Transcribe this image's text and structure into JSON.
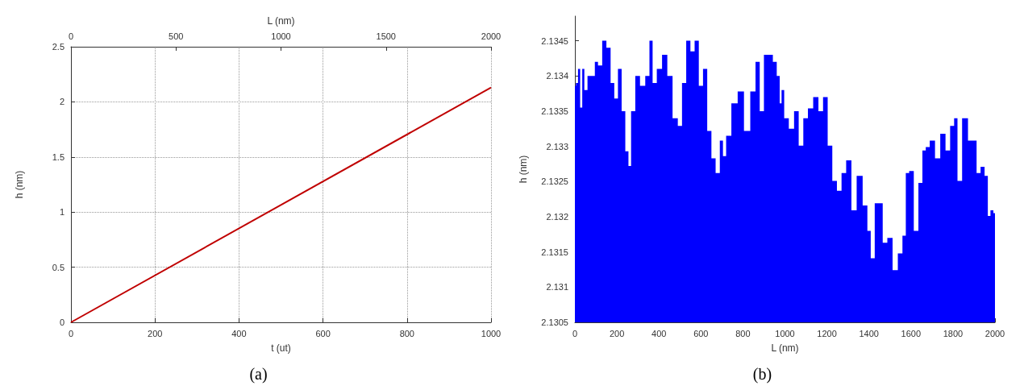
{
  "chart_data": [
    {
      "type": "line",
      "xlabel": "t (ut)",
      "ylabel": "h (nm)",
      "x2label": "L (nm)",
      "annotations": [
        "(a)"
      ],
      "x": [
        0,
        1000
      ],
      "values": [
        0,
        2.13
      ],
      "color": "#c00000",
      "xlim": [
        0,
        1000
      ],
      "xticks": [
        0,
        200,
        400,
        600,
        800,
        1000
      ],
      "ylim": [
        0,
        2.5
      ],
      "yticks": [
        0,
        0.5,
        1,
        1.5,
        2,
        2.5
      ],
      "x2lim": [
        0,
        2000
      ],
      "x2ticks": [
        0,
        500,
        1000,
        1500,
        2000
      ],
      "grid": true,
      "marker": "none"
    },
    {
      "type": "area",
      "xlabel": "L (nm)",
      "ylabel": "h (nm)",
      "annotations": [
        "(b)"
      ],
      "color": "#0000ff",
      "xlim": [
        0,
        2000
      ],
      "xticks": [
        0,
        200,
        400,
        600,
        800,
        1000,
        1200,
        1400,
        1600,
        1800,
        2000
      ],
      "ylim": [
        2.1305,
        2.13485
      ],
      "yticks": [
        2.1305,
        2.131,
        2.1315,
        2.132,
        2.1325,
        2.133,
        2.1335,
        2.134,
        2.1345
      ],
      "marker": "none",
      "x": [
        0,
        10,
        20,
        30,
        40,
        50,
        70,
        90,
        100,
        120,
        140,
        160,
        180,
        195,
        215,
        230,
        250,
        260,
        275,
        300,
        320,
        350,
        360,
        380,
        400,
        430,
        450,
        480,
        500,
        520,
        540,
        560,
        580,
        600,
        620,
        640,
        660,
        680,
        700,
        710,
        730,
        760,
        790,
        820,
        850,
        870,
        890,
        910,
        935,
        950,
        972,
        978,
        990,
        1003,
        1034,
        1053,
        1078,
        1097,
        1122,
        1147,
        1172,
        1191,
        1216,
        1235,
        1260,
        1279,
        1304,
        1329,
        1354,
        1386,
        1399,
        1418,
        1437,
        1456,
        1475,
        1500,
        1525,
        1550,
        1569,
        1582,
        1601,
        1626,
        1645,
        1664,
        1677,
        1702,
        1727,
        1752,
        1777,
        1796,
        1815,
        1828,
        1859,
        1884,
        1903,
        1922,
        1941,
        1960,
        1972,
        1985,
        2000
      ],
      "values": [
        2.13386,
        2.1339,
        2.1341,
        2.13355,
        2.1341,
        2.1338,
        2.134,
        2.134,
        2.1342,
        2.13415,
        2.1345,
        2.1344,
        2.1339,
        2.13368,
        2.1341,
        2.1335,
        2.13293,
        2.13272,
        2.1335,
        2.134,
        2.13386,
        2.134,
        2.1345,
        2.1339,
        2.1341,
        2.1343,
        2.134,
        2.1334,
        2.13329,
        2.1339,
        2.1345,
        2.13435,
        2.1345,
        2.13386,
        2.1341,
        2.13322,
        2.13283,
        2.13262,
        2.13308,
        2.13286,
        2.13315,
        2.13361,
        2.13378,
        2.13322,
        2.13378,
        2.1342,
        2.1335,
        2.1343,
        2.1343,
        2.1342,
        2.134,
        2.13361,
        2.1338,
        2.1334,
        2.13325,
        2.1335,
        2.13301,
        2.1334,
        2.13354,
        2.1337,
        2.1335,
        2.1337,
        2.13301,
        2.13251,
        2.13237,
        2.13262,
        2.1328,
        2.13209,
        2.13258,
        2.13216,
        2.1318,
        2.13141,
        2.13219,
        2.13219,
        2.13163,
        2.1317,
        2.13124,
        2.13148,
        2.13173,
        2.13262,
        2.13265,
        2.1318,
        2.13248,
        2.13294,
        2.13299,
        2.13308,
        2.13283,
        2.13318,
        2.13294,
        2.13329,
        2.1334,
        2.13251,
        2.1334,
        2.13308,
        2.13308,
        2.13262,
        2.13271,
        2.13258,
        2.13201,
        2.13209,
        2.13205
      ]
    }
  ]
}
